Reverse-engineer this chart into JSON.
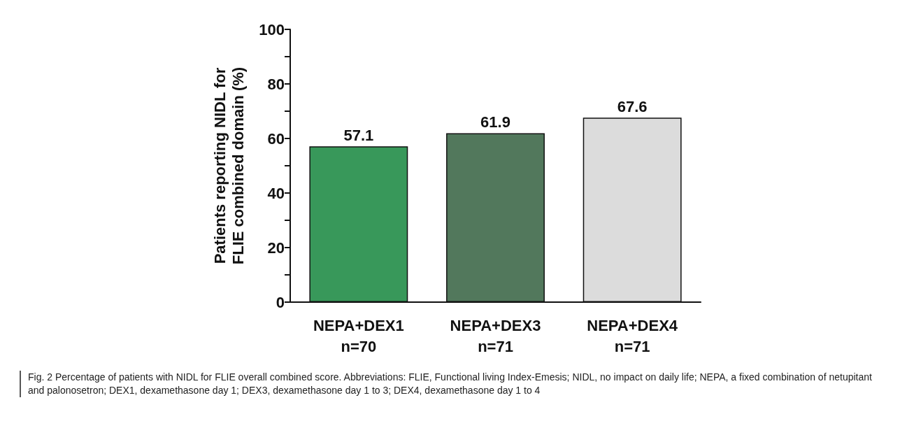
{
  "chart_data": {
    "type": "bar",
    "ylabel": "Patients reporting NIDL for\nFLIE combined domain (%)",
    "categories": [
      "NEPA+DEX1\nn=70",
      "NEPA+DEX3\nn=71",
      "NEPA+DEX4\nn=71"
    ],
    "values": [
      57.1,
      61.9,
      67.6
    ],
    "colors": [
      "#38985a",
      "#52785c",
      "#dcdcdc"
    ],
    "ylim": [
      0,
      100
    ],
    "yticks": [
      0,
      {
        "value": 10,
        "label": null
      },
      20,
      {
        "value": 30,
        "label": null
      },
      40,
      {
        "value": 50,
        "label": null
      },
      60,
      {
        "value": 70,
        "label": null
      },
      80,
      {
        "value": 90,
        "label": null
      },
      100
    ],
    "data_labels": true,
    "grid": false,
    "annotations": [
      "Fig. 2  Percentage of patients with NIDL for FLIE overall combined score. Abbreviations: FLIE, Functional living Index-Emesis; NIDL, no impact on daily life; NEPA, a fixed combination of netupitant and palonosetron; DEX1, dexamethasone day 1; DEX3, dexamethasone day 1 to 3; DEX4, dexamethasone day 1 to 4"
    ]
  }
}
